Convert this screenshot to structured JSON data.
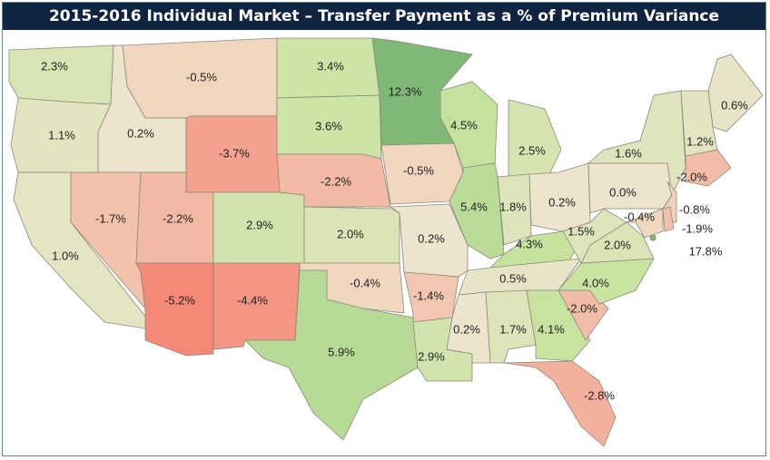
{
  "header": {
    "title": "2015-2016 Individual Market – Transfer Payment as a % of Premium Variance"
  },
  "map": {
    "values": [
      2.3,
      1.1,
      1.0,
      0.2,
      -0.5,
      -3.7,
      -1.7,
      -2.2,
      -5.2,
      -4.4,
      2.9,
      3.4,
      3.6,
      -2.2,
      2.0,
      -0.4,
      5.9,
      12.3,
      -0.5,
      0.2,
      -1.4,
      2.9,
      4.5,
      5.4,
      2.5,
      1.8,
      0.2,
      4.3,
      0.5,
      0.2,
      1.7,
      4.1,
      -2.8,
      -2.0,
      4.0,
      2.0,
      1.5,
      0.0,
      1.6,
      0.6,
      1.2,
      -2.0,
      -0.8,
      -0.4,
      -1.9,
      17.8
    ],
    "value_labels": [
      "2.3%",
      "1.1%",
      "1.0%",
      "0.2%",
      "-0.5%",
      "-3.7%",
      "-1.7%",
      "-2.2%",
      "-5.2%",
      "-4.4%",
      "2.9%",
      "3.4%",
      "3.6%",
      "-2.2%",
      "2.0%",
      "-0.4%",
      "5.9%",
      "12.3%",
      "-0.5%",
      "0.2%",
      "-1.4%",
      "2.9%",
      "4.5%",
      "5.4%",
      "2.5%",
      "1.8%",
      "0.2%",
      "4.3%",
      "0.5%",
      "0.2%",
      "1.7%",
      "4.1%",
      "-2.8%",
      "-2.0%",
      "4.0%",
      "2.0%",
      "1.5%",
      "0.0%",
      "1.6%",
      "0.6%",
      "1.2%",
      "-2.0%",
      "-0.8%",
      "-0.4%",
      "-1.9%",
      "17.8%"
    ]
  }
}
